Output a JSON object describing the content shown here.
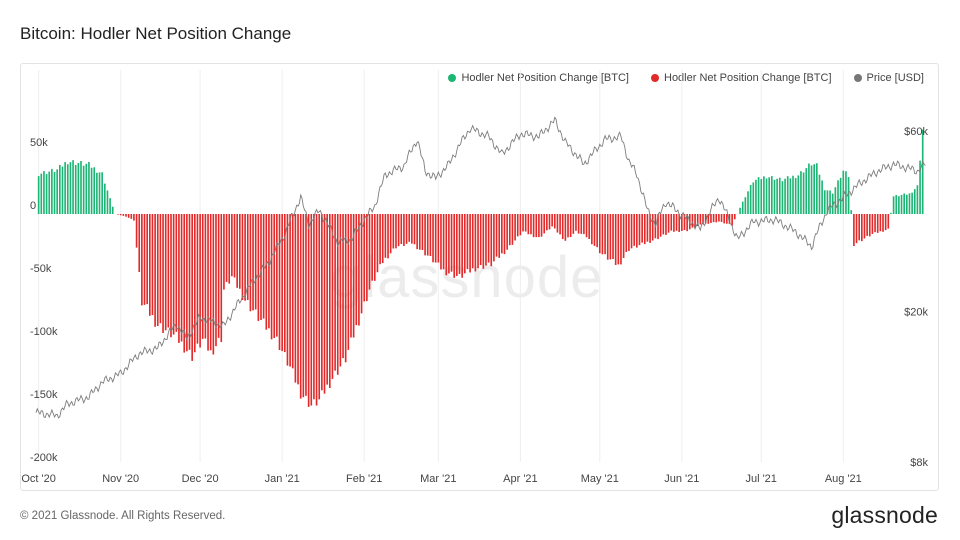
{
  "title": "Bitcoin: Hodler Net Position Change",
  "footer": {
    "copyright": "© 2021 Glassnode. All Rights Reserved.",
    "logo": "glassnode"
  },
  "watermark": "glassnode",
  "chart_data": {
    "type": "bar",
    "title": "Bitcoin: Hodler Net Position Change",
    "legend_position": "top-right",
    "grid": {
      "vertical": true,
      "horizontal": false
    },
    "x_range": [
      "2020-09-30",
      "2021-09-02"
    ],
    "x_ticks": [
      {
        "label": "Oct '20",
        "date": "2020-10-01"
      },
      {
        "label": "Nov '20",
        "date": "2020-11-01"
      },
      {
        "label": "Dec '20",
        "date": "2020-12-01"
      },
      {
        "label": "Jan '21",
        "date": "2021-01-01"
      },
      {
        "label": "Feb '21",
        "date": "2021-02-01"
      },
      {
        "label": "Mar '21",
        "date": "2021-03-01"
      },
      {
        "label": "Apr '21",
        "date": "2021-04-01"
      },
      {
        "label": "May '21",
        "date": "2021-05-01"
      },
      {
        "label": "Jun '21",
        "date": "2021-06-01"
      },
      {
        "label": "Jul '21",
        "date": "2021-07-01"
      },
      {
        "label": "Aug '21",
        "date": "2021-08-01"
      }
    ],
    "y_left": {
      "ticks": [
        50000,
        0,
        -50000,
        -100000,
        -150000,
        -200000
      ],
      "tick_labels": [
        "50k",
        "0",
        "-50k",
        "-100k",
        "-150k",
        "-200k"
      ],
      "range": [
        -200000,
        67000
      ]
    },
    "y_right": {
      "scale": "log",
      "ticks": [
        60000,
        20000,
        8000
      ],
      "tick_labels": [
        "$60k",
        "$20k",
        "$8k"
      ],
      "range": [
        8000,
        66000
      ]
    },
    "series": [
      {
        "name": "Hodler Net Position Change [BTC]",
        "color": "#1db574",
        "kind": "bar-positive",
        "axis": "left"
      },
      {
        "name": "Hodler Net Position Change [BTC]",
        "color": "#e22a2a",
        "kind": "bar-negative",
        "axis": "left"
      },
      {
        "name": "Price [USD]",
        "color": "#8a8a8a",
        "kind": "line",
        "axis": "right"
      }
    ],
    "net_position_keypoints": [
      [
        "2020-10-01",
        32000
      ],
      [
        "2020-10-08",
        35000
      ],
      [
        "2020-10-12",
        42000
      ],
      [
        "2020-10-20",
        39000
      ],
      [
        "2020-10-25",
        32000
      ],
      [
        "2020-10-28",
        12000
      ],
      [
        "2020-10-30",
        0
      ],
      [
        "2020-11-03",
        -2000
      ],
      [
        "2020-11-06",
        -5000
      ],
      [
        "2020-11-09",
        -70000
      ],
      [
        "2020-11-15",
        -88000
      ],
      [
        "2020-11-22",
        -98000
      ],
      [
        "2020-11-28",
        -113000
      ],
      [
        "2020-12-02",
        -100000
      ],
      [
        "2020-12-05",
        -110000
      ],
      [
        "2020-12-09",
        -98000
      ],
      [
        "2020-12-10",
        -60000
      ],
      [
        "2020-12-13",
        -50000
      ],
      [
        "2020-12-18",
        -68000
      ],
      [
        "2020-12-24",
        -85000
      ],
      [
        "2020-12-30",
        -100000
      ],
      [
        "2021-01-04",
        -122000
      ],
      [
        "2021-01-08",
        -142000
      ],
      [
        "2021-01-12",
        -152000
      ],
      [
        "2021-01-15",
        -148000
      ],
      [
        "2021-01-20",
        -130000
      ],
      [
        "2021-01-25",
        -115000
      ],
      [
        "2021-01-29",
        -90000
      ],
      [
        "2021-02-03",
        -60000
      ],
      [
        "2021-02-08",
        -38000
      ],
      [
        "2021-02-13",
        -26000
      ],
      [
        "2021-02-19",
        -23000
      ],
      [
        "2021-02-25",
        -33000
      ],
      [
        "2021-03-03",
        -45000
      ],
      [
        "2021-03-09",
        -50000
      ],
      [
        "2021-03-15",
        -43000
      ],
      [
        "2021-03-21",
        -40000
      ],
      [
        "2021-03-27",
        -28000
      ],
      [
        "2021-04-02",
        -14000
      ],
      [
        "2021-04-08",
        -19000
      ],
      [
        "2021-04-13",
        -10000
      ],
      [
        "2021-04-18",
        -21000
      ],
      [
        "2021-04-22",
        -14000
      ],
      [
        "2021-04-26",
        -18000
      ],
      [
        "2021-05-02",
        -32000
      ],
      [
        "2021-05-08",
        -41000
      ],
      [
        "2021-05-12",
        -28000
      ],
      [
        "2021-05-16",
        -25000
      ],
      [
        "2021-05-22",
        -20000
      ],
      [
        "2021-05-28",
        -14000
      ],
      [
        "2021-06-03",
        -13000
      ],
      [
        "2021-06-09",
        -8000
      ],
      [
        "2021-06-15",
        -6000
      ],
      [
        "2021-06-20",
        -9000
      ],
      [
        "2021-06-23",
        5000
      ],
      [
        "2021-06-25",
        14000
      ],
      [
        "2021-06-28",
        26000
      ],
      [
        "2021-07-03",
        30000
      ],
      [
        "2021-07-09",
        27000
      ],
      [
        "2021-07-15",
        31000
      ],
      [
        "2021-07-20",
        40000
      ],
      [
        "2021-07-22",
        38000
      ],
      [
        "2021-07-25",
        20000
      ],
      [
        "2021-07-28",
        17000
      ],
      [
        "2021-08-01",
        34000
      ],
      [
        "2021-08-03",
        30000
      ],
      [
        "2021-08-05",
        -24000
      ],
      [
        "2021-08-12",
        -16000
      ],
      [
        "2021-08-18",
        -12000
      ],
      [
        "2021-08-20",
        14000
      ],
      [
        "2021-08-26",
        16000
      ],
      [
        "2021-08-29",
        22000
      ],
      [
        "2021-08-31",
        67000
      ]
    ],
    "price_keypoints": [
      [
        "2020-09-30",
        10800
      ],
      [
        "2020-10-05",
        10700
      ],
      [
        "2020-10-08",
        10600
      ],
      [
        "2020-10-12",
        11400
      ],
      [
        "2020-10-20",
        11900
      ],
      [
        "2020-10-25",
        13000
      ],
      [
        "2020-11-01",
        13700
      ],
      [
        "2020-11-08",
        15500
      ],
      [
        "2020-11-15",
        16000
      ],
      [
        "2020-11-22",
        18500
      ],
      [
        "2020-11-26",
        17000
      ],
      [
        "2020-12-01",
        19300
      ],
      [
        "2020-12-10",
        18300
      ],
      [
        "2020-12-16",
        21300
      ],
      [
        "2020-12-20",
        23500
      ],
      [
        "2020-12-27",
        27000
      ],
      [
        "2021-01-02",
        32000
      ],
      [
        "2021-01-08",
        40000
      ],
      [
        "2021-01-11",
        34000
      ],
      [
        "2021-01-15",
        37000
      ],
      [
        "2021-01-22",
        30500
      ],
      [
        "2021-01-27",
        31000
      ],
      [
        "2021-02-05",
        38000
      ],
      [
        "2021-02-09",
        46000
      ],
      [
        "2021-02-16",
        48500
      ],
      [
        "2021-02-21",
        57000
      ],
      [
        "2021-02-24",
        47000
      ],
      [
        "2021-02-28",
        45000
      ],
      [
        "2021-03-05",
        49000
      ],
      [
        "2021-03-13",
        61000
      ],
      [
        "2021-03-20",
        58000
      ],
      [
        "2021-03-25",
        52000
      ],
      [
        "2021-04-01",
        59000
      ],
      [
        "2021-04-08",
        58000
      ],
      [
        "2021-04-14",
        64000
      ],
      [
        "2021-04-18",
        56000
      ],
      [
        "2021-04-25",
        49000
      ],
      [
        "2021-05-03",
        57000
      ],
      [
        "2021-05-09",
        58000
      ],
      [
        "2021-05-12",
        50000
      ],
      [
        "2021-05-15",
        46000
      ],
      [
        "2021-05-19",
        37000
      ],
      [
        "2021-05-22",
        34000
      ],
      [
        "2021-05-26",
        39000
      ],
      [
        "2021-06-01",
        36000
      ],
      [
        "2021-06-08",
        33000
      ],
      [
        "2021-06-15",
        40000
      ],
      [
        "2021-06-22",
        31000
      ],
      [
        "2021-06-28",
        34500
      ],
      [
        "2021-07-06",
        35000
      ],
      [
        "2021-07-14",
        32500
      ],
      [
        "2021-07-20",
        29700
      ],
      [
        "2021-07-26",
        37000
      ],
      [
        "2021-08-01",
        40000
      ],
      [
        "2021-08-08",
        44000
      ],
      [
        "2021-08-14",
        47000
      ],
      [
        "2021-08-20",
        49000
      ],
      [
        "2021-08-25",
        48000
      ],
      [
        "2021-08-29",
        47000
      ],
      [
        "2021-08-31",
        48500
      ],
      [
        "2021-09-01",
        49000
      ]
    ]
  }
}
